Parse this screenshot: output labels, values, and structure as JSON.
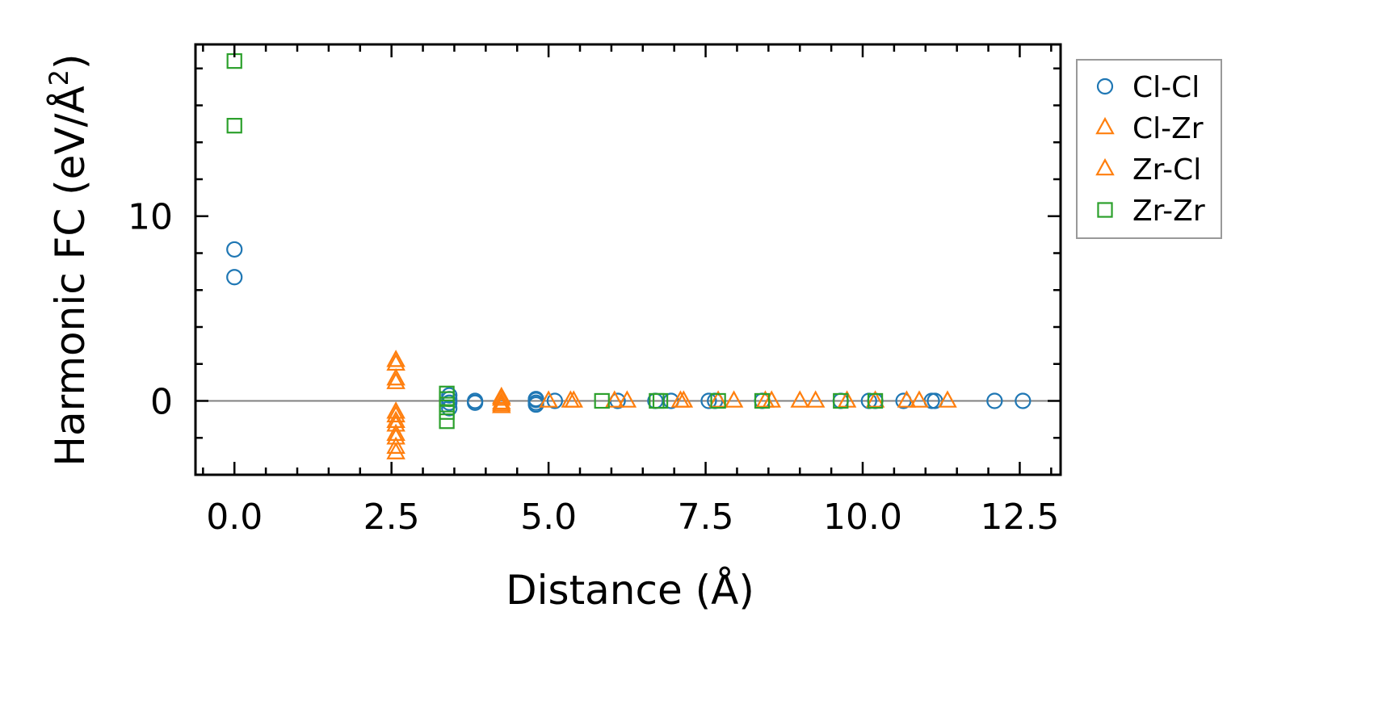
{
  "chart_data": {
    "type": "scatter",
    "title": "",
    "xlabel": "Distance (Å)",
    "ylabel_main": "Harmonic FC (eV/Å",
    "ylabel_sup": "2",
    "ylabel_close": ")",
    "xlim": [
      -0.62,
      13.15
    ],
    "ylim": [
      -4.0,
      19.3
    ],
    "xticks": [
      0.0,
      2.5,
      5.0,
      7.5,
      10.0,
      12.5
    ],
    "xtick_labels": [
      "0.0",
      "2.5",
      "5.0",
      "7.5",
      "10.0",
      "12.5"
    ],
    "yticks": [
      0,
      10
    ],
    "ytick_labels": [
      "0",
      "10"
    ],
    "legend_position": "outside-right-top",
    "zero_line": true,
    "series": [
      {
        "name": "Cl-Cl",
        "marker": "circle",
        "color": "#1f77b4",
        "points": [
          [
            0.0,
            8.2
          ],
          [
            0.0,
            6.7
          ],
          [
            3.42,
            0.1
          ],
          [
            3.42,
            -0.1
          ],
          [
            3.42,
            -0.4
          ],
          [
            3.42,
            0.3
          ],
          [
            3.83,
            0.0
          ],
          [
            3.83,
            -0.1
          ],
          [
            4.8,
            0.1
          ],
          [
            4.8,
            -0.1
          ],
          [
            4.8,
            -0.2
          ],
          [
            4.8,
            0.05
          ],
          [
            5.1,
            0.0
          ],
          [
            6.1,
            0.0
          ],
          [
            6.7,
            0.0
          ],
          [
            6.95,
            0.0
          ],
          [
            7.55,
            0.0
          ],
          [
            7.65,
            0.0
          ],
          [
            8.4,
            0.0
          ],
          [
            9.65,
            0.0
          ],
          [
            10.1,
            0.0
          ],
          [
            10.2,
            0.0
          ],
          [
            10.65,
            0.0
          ],
          [
            11.1,
            0.0
          ],
          [
            11.15,
            0.0
          ],
          [
            12.1,
            0.0
          ],
          [
            12.55,
            0.0
          ]
        ]
      },
      {
        "name": "Cl-Zr",
        "marker": "triangle",
        "color": "#ff7f0e",
        "points": [
          [
            2.57,
            2.0
          ],
          [
            2.57,
            1.0
          ],
          [
            2.57,
            -0.8
          ],
          [
            2.57,
            -1.3
          ],
          [
            2.57,
            -2.0
          ],
          [
            2.57,
            -2.8
          ],
          [
            4.25,
            0.2
          ],
          [
            4.25,
            -0.1
          ],
          [
            4.25,
            -0.3
          ],
          [
            5.0,
            0.0
          ],
          [
            5.4,
            0.0
          ],
          [
            6.25,
            0.0
          ],
          [
            7.15,
            0.0
          ],
          [
            7.95,
            0.0
          ],
          [
            8.55,
            0.0
          ],
          [
            9.0,
            0.0
          ],
          [
            9.75,
            0.0
          ],
          [
            10.7,
            0.0
          ],
          [
            11.35,
            0.0
          ]
        ]
      },
      {
        "name": "Zr-Cl",
        "marker": "triangle",
        "color": "#ff7f0e",
        "points": [
          [
            2.57,
            2.2
          ],
          [
            2.57,
            1.2
          ],
          [
            2.57,
            -0.6
          ],
          [
            2.57,
            -1.1
          ],
          [
            2.57,
            -1.8
          ],
          [
            2.57,
            -2.5
          ],
          [
            4.25,
            0.1
          ],
          [
            4.25,
            -0.2
          ],
          [
            5.35,
            0.0
          ],
          [
            6.05,
            0.0
          ],
          [
            7.1,
            0.0
          ],
          [
            7.7,
            0.0
          ],
          [
            8.45,
            0.0
          ],
          [
            9.25,
            0.0
          ],
          [
            10.2,
            0.0
          ],
          [
            10.9,
            0.0
          ]
        ]
      },
      {
        "name": "Zr-Zr",
        "marker": "square",
        "color": "#2ca02c",
        "points": [
          [
            0.0,
            18.4
          ],
          [
            0.0,
            14.9
          ],
          [
            3.38,
            0.4
          ],
          [
            3.38,
            0.1
          ],
          [
            3.38,
            -0.2
          ],
          [
            3.38,
            -0.6
          ],
          [
            3.38,
            -1.1
          ],
          [
            5.85,
            0.0
          ],
          [
            6.72,
            0.0
          ],
          [
            6.78,
            0.0
          ],
          [
            7.7,
            0.0
          ],
          [
            8.4,
            0.0
          ],
          [
            9.65,
            0.0
          ],
          [
            10.2,
            0.0
          ]
        ]
      }
    ]
  }
}
